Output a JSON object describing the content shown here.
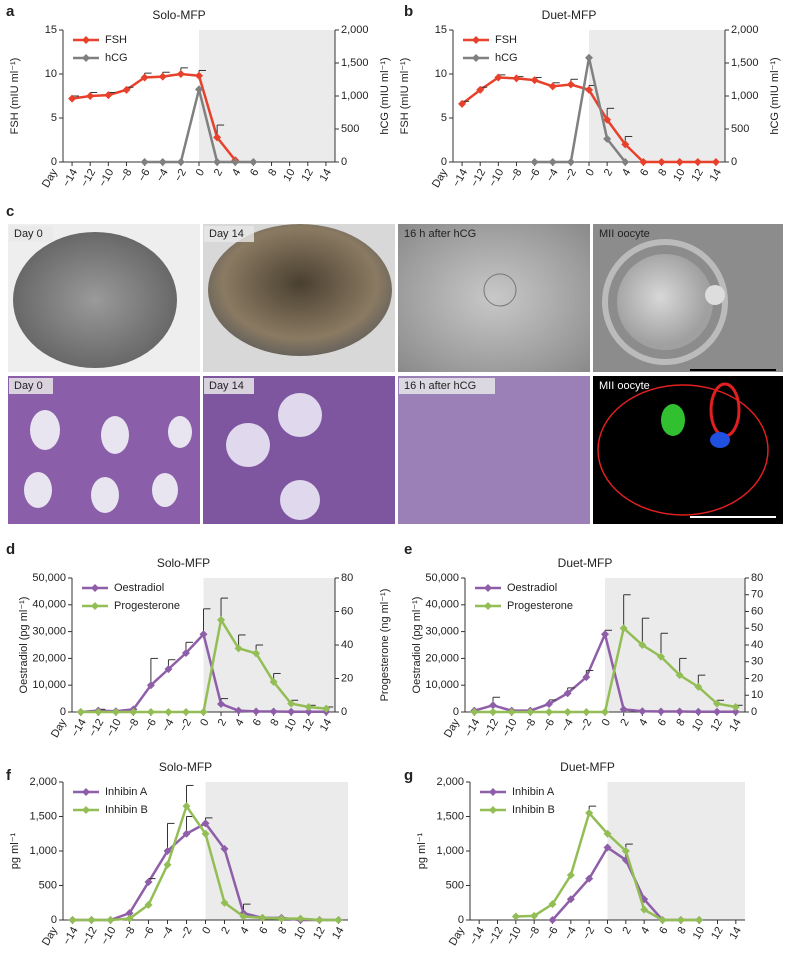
{
  "micrographs": {
    "panel": "c",
    "rows": [
      [
        "Day 0",
        "Day 14",
        "16 h after hCG",
        "MII oocyte"
      ],
      [
        "Day 0",
        "Day 14",
        "16 h after hCG",
        "MII oocyte"
      ]
    ]
  },
  "chart_data": [
    {
      "type": "line",
      "panel": "a",
      "title": "Solo-MFP",
      "xlabel": "Day",
      "ylabel": "FSH (mIU ml⁻¹)",
      "y2label": "hCG (mIU ml⁻¹)",
      "legend": "upper left",
      "x": [
        -14,
        -12,
        -10,
        -8,
        -6,
        -4,
        -2,
        0,
        2,
        4,
        6,
        8,
        10,
        12,
        14
      ],
      "xlim": [
        -15,
        15
      ],
      "shaded_x": [
        0,
        15
      ],
      "xticks": [
        {
          "value": -14,
          "label": "−14"
        },
        {
          "value": -12,
          "label": "−12"
        },
        {
          "value": -10,
          "label": "−10"
        },
        {
          "value": -8,
          "label": "−8"
        },
        {
          "value": -6,
          "label": "−6"
        },
        {
          "value": -4,
          "label": "−4"
        },
        {
          "value": -2,
          "label": "−2"
        },
        0,
        2,
        4,
        6,
        8,
        10,
        12,
        14
      ],
      "ylim": [
        0,
        15
      ],
      "yticks": [
        0,
        5,
        10,
        15
      ],
      "y2lim": [
        0,
        2000
      ],
      "y2ticks": [
        0,
        500,
        {
          "value": 1000,
          "label": "1,000"
        },
        {
          "value": 1500,
          "label": "1,500"
        },
        {
          "value": 2000,
          "label": "2,000"
        }
      ],
      "series": [
        {
          "name": "FSH",
          "color": "#e8412b",
          "values": [
            7.2,
            7.5,
            7.6,
            8.2,
            9.6,
            9.7,
            10,
            9.8,
            2.8,
            0.2,
            null,
            null,
            null,
            null,
            null
          ],
          "errors": [
            0.3,
            0.4,
            0.3,
            0.3,
            0.5,
            0.5,
            0.7,
            0.6,
            1.4,
            null,
            null,
            null,
            null,
            null,
            null
          ]
        },
        {
          "name": "hCG",
          "color": "#808080",
          "axis": "y2",
          "values": [
            null,
            null,
            null,
            null,
            0,
            0,
            0,
            1100,
            0,
            0,
            0,
            null,
            null,
            null,
            null
          ]
        }
      ]
    },
    {
      "type": "line",
      "panel": "b",
      "title": "Duet-MFP",
      "xlabel": "Day",
      "ylabel": "FSH (mIU ml⁻¹)",
      "y2label": "hCG (mIU ml⁻¹)",
      "legend": "upper left",
      "x": [
        -14,
        -12,
        -10,
        -8,
        -6,
        -4,
        -2,
        0,
        2,
        4,
        6,
        8,
        10,
        12,
        14
      ],
      "xlim": [
        -15,
        15
      ],
      "shaded_x": [
        0,
        15
      ],
      "xticks": [
        {
          "value": -14,
          "label": "−14"
        },
        {
          "value": -12,
          "label": "−12"
        },
        {
          "value": -10,
          "label": "−10"
        },
        {
          "value": -8,
          "label": "−8"
        },
        {
          "value": -6,
          "label": "−6"
        },
        {
          "value": -4,
          "label": "−4"
        },
        {
          "value": -2,
          "label": "−2"
        },
        0,
        2,
        4,
        6,
        8,
        10,
        12,
        14
      ],
      "ylim": [
        0,
        15
      ],
      "yticks": [
        0,
        5,
        10,
        15
      ],
      "y2lim": [
        0,
        2000
      ],
      "y2ticks": [
        0,
        500,
        {
          "value": 1000,
          "label": "1,000"
        },
        {
          "value": 1500,
          "label": "1,500"
        },
        {
          "value": 2000,
          "label": "2,000"
        }
      ],
      "series": [
        {
          "name": "FSH",
          "color": "#e8412b",
          "values": [
            6.6,
            8.2,
            9.6,
            9.5,
            9.3,
            8.6,
            8.8,
            8.2,
            4.8,
            2.0,
            0,
            0,
            0,
            0,
            0
          ],
          "errors": [
            0.3,
            0.3,
            0.3,
            0.2,
            0.3,
            0.4,
            0.6,
            0.5,
            1.3,
            0.9,
            null,
            null,
            null,
            null,
            null
          ]
        },
        {
          "name": "hCG",
          "color": "#808080",
          "axis": "y2",
          "values": [
            null,
            null,
            null,
            null,
            0,
            0,
            0,
            1580,
            350,
            0,
            null,
            null,
            null,
            null,
            null
          ]
        }
      ]
    },
    {
      "type": "line",
      "panel": "d",
      "title": "Solo-MFP",
      "xlabel": "Day",
      "ylabel": "Oestradiol (pg ml⁻¹)",
      "y2label": "Progesterone (ng ml⁻¹)",
      "legend": "upper left",
      "x": [
        -14,
        -12,
        -10,
        -8,
        -6,
        -4,
        -2,
        0,
        2,
        4,
        6,
        8,
        10,
        12,
        14
      ],
      "xlim": [
        -15,
        15
      ],
      "shaded_x": [
        0,
        15
      ],
      "xticks": [
        {
          "value": -14,
          "label": "−14"
        },
        {
          "value": -12,
          "label": "−12"
        },
        {
          "value": -10,
          "label": "−10"
        },
        {
          "value": -8,
          "label": "−8"
        },
        {
          "value": -6,
          "label": "−6"
        },
        {
          "value": -4,
          "label": "−4"
        },
        {
          "value": -2,
          "label": "−2"
        },
        0,
        2,
        4,
        6,
        8,
        10,
        12,
        14
      ],
      "ylim": [
        0,
        50000
      ],
      "yticks": [
        0,
        {
          "value": 10000,
          "label": "10,000"
        },
        {
          "value": 20000,
          "label": "20,000"
        },
        {
          "value": 30000,
          "label": "30,000"
        },
        {
          "value": 40000,
          "label": "40,000"
        },
        {
          "value": 50000,
          "label": "50,000"
        }
      ],
      "y2lim": [
        0,
        80
      ],
      "y2ticks": [
        0,
        20,
        40,
        60,
        80
      ],
      "series": [
        {
          "name": "Oestradiol",
          "color": "#8e5ea8",
          "values": [
            0,
            500,
            300,
            1000,
            10000,
            16000,
            22000,
            29000,
            3000,
            500,
            200,
            200,
            100,
            100,
            100
          ],
          "errors": [
            null,
            500,
            null,
            null,
            10000,
            3500,
            4000,
            9500,
            2000,
            null,
            null,
            null,
            null,
            null,
            null
          ]
        },
        {
          "name": "Progesterone",
          "color": "#93bd55",
          "axis": "y2",
          "values": [
            0,
            0,
            0,
            0,
            0,
            0,
            0,
            0,
            55,
            38,
            35,
            18,
            5,
            3,
            2
          ],
          "errors": [
            null,
            null,
            null,
            null,
            null,
            null,
            null,
            null,
            13,
            8,
            5,
            5,
            2,
            1,
            1
          ]
        }
      ]
    },
    {
      "type": "line",
      "panel": "e",
      "title": "Duet-MFP",
      "xlabel": "Day",
      "ylabel": "Oestradiol (pg ml⁻¹)",
      "y2label": "Progesterone (ng ml⁻¹)",
      "legend": "upper left",
      "x": [
        -14,
        -12,
        -10,
        -8,
        -6,
        -4,
        -2,
        0,
        2,
        4,
        6,
        8,
        10,
        12,
        14
      ],
      "xlim": [
        -15,
        15
      ],
      "shaded_x": [
        0,
        15
      ],
      "xticks": [
        {
          "value": -14,
          "label": "−14"
        },
        {
          "value": -12,
          "label": "−12"
        },
        {
          "value": -10,
          "label": "−10"
        },
        {
          "value": -8,
          "label": "−8"
        },
        {
          "value": -6,
          "label": "−6"
        },
        {
          "value": -4,
          "label": "−4"
        },
        {
          "value": -2,
          "label": "−2"
        },
        0,
        2,
        4,
        6,
        8,
        10,
        12,
        14
      ],
      "ylim": [
        0,
        50000
      ],
      "yticks": [
        0,
        {
          "value": 10000,
          "label": "10,000"
        },
        {
          "value": 20000,
          "label": "20,000"
        },
        {
          "value": 30000,
          "label": "30,000"
        },
        {
          "value": 40000,
          "label": "40,000"
        },
        {
          "value": 50000,
          "label": "50,000"
        }
      ],
      "y2lim": [
        0,
        80
      ],
      "y2ticks": [
        0,
        10,
        20,
        30,
        40,
        50,
        60,
        70,
        80
      ],
      "series": [
        {
          "name": "Oestradiol",
          "color": "#8e5ea8",
          "values": [
            500,
            2500,
            500,
            500,
            3000,
            7000,
            13000,
            29000,
            1000,
            300,
            200,
            200,
            100,
            100,
            100
          ],
          "errors": [
            null,
            3000,
            null,
            null,
            1500,
            2000,
            2500,
            1500,
            null,
            null,
            null,
            null,
            null,
            null,
            null
          ]
        },
        {
          "name": "Progesterone",
          "color": "#93bd55",
          "axis": "y2",
          "values": [
            0,
            0,
            0,
            0,
            0,
            0,
            0,
            0,
            50,
            40,
            33,
            22,
            15,
            5,
            3
          ],
          "errors": [
            null,
            null,
            null,
            null,
            null,
            null,
            null,
            null,
            20,
            16,
            14,
            10,
            7,
            2,
            1
          ]
        }
      ]
    },
    {
      "type": "line",
      "panel": "f",
      "title": "Solo-MFP",
      "xlabel": "Day",
      "ylabel": "pg ml⁻¹",
      "legend": "upper left",
      "x": [
        -14,
        -12,
        -10,
        -8,
        -6,
        -4,
        -2,
        0,
        2,
        4,
        6,
        8,
        10,
        12,
        14
      ],
      "xlim": [
        -15,
        15
      ],
      "shaded_x": [
        0,
        15
      ],
      "xticks": [
        {
          "value": -14,
          "label": "−14"
        },
        {
          "value": -12,
          "label": "−12"
        },
        {
          "value": -10,
          "label": "−10"
        },
        {
          "value": -8,
          "label": "−8"
        },
        {
          "value": -6,
          "label": "−6"
        },
        {
          "value": -4,
          "label": "−4"
        },
        {
          "value": -2,
          "label": "−2"
        },
        0,
        2,
        4,
        6,
        8,
        10,
        12,
        14
      ],
      "ylim": [
        0,
        2000
      ],
      "yticks": [
        0,
        500,
        {
          "value": 1000,
          "label": "1,000"
        },
        {
          "value": 1500,
          "label": "1,500"
        },
        {
          "value": 2000,
          "label": "2,000"
        }
      ],
      "series": [
        {
          "name": "Inhibin A",
          "color": "#8e5ea8",
          "values": [
            0,
            0,
            0,
            100,
            550,
            1000,
            1250,
            1400,
            1030,
            100,
            30,
            30,
            0,
            0,
            0
          ],
          "errors": [
            null,
            null,
            null,
            null,
            50,
            400,
            250,
            80,
            null,
            130,
            null,
            null,
            null,
            null,
            null
          ]
        },
        {
          "name": "Inhibin B",
          "color": "#93bd55",
          "values": [
            0,
            0,
            0,
            20,
            220,
            800,
            1650,
            1250,
            250,
            50,
            30,
            20,
            20,
            0,
            0
          ],
          "errors": [
            null,
            null,
            null,
            null,
            null,
            null,
            300,
            null,
            null,
            null,
            null,
            null,
            null,
            null,
            null
          ]
        }
      ]
    },
    {
      "type": "line",
      "panel": "g",
      "title": "Duet-MFP",
      "xlabel": "Day",
      "ylabel": "pg ml⁻¹",
      "legend": "upper left",
      "x": [
        -14,
        -12,
        -10,
        -8,
        -6,
        -4,
        -2,
        0,
        2,
        4,
        6,
        8,
        10,
        12,
        14
      ],
      "xlim": [
        -15,
        15
      ],
      "shaded_x": [
        0,
        15
      ],
      "xticks": [
        {
          "value": -14,
          "label": "−14"
        },
        {
          "value": -12,
          "label": "−12"
        },
        {
          "value": -10,
          "label": "−10"
        },
        {
          "value": -8,
          "label": "−8"
        },
        {
          "value": -6,
          "label": "−6"
        },
        {
          "value": -4,
          "label": "−4"
        },
        {
          "value": -2,
          "label": "−2"
        },
        0,
        2,
        4,
        6,
        8,
        10,
        12,
        14
      ],
      "ylim": [
        0,
        2000
      ],
      "yticks": [
        0,
        500,
        {
          "value": 1000,
          "label": "1,000"
        },
        {
          "value": 1500,
          "label": "1,500"
        },
        {
          "value": 2000,
          "label": "2,000"
        }
      ],
      "series": [
        {
          "name": "Inhibin A",
          "color": "#8e5ea8",
          "values": [
            null,
            null,
            null,
            null,
            0,
            300,
            600,
            1050,
            870,
            300,
            0,
            0,
            0,
            null,
            null
          ],
          "errors": [
            null,
            null,
            null,
            null,
            null,
            null,
            null,
            null,
            230,
            null,
            null,
            null,
            null,
            null,
            null
          ]
        },
        {
          "name": "Inhibin B",
          "color": "#93bd55",
          "values": [
            null,
            null,
            50,
            60,
            230,
            650,
            1550,
            1250,
            1000,
            150,
            0,
            0,
            0,
            null,
            null
          ],
          "errors": [
            null,
            null,
            null,
            null,
            null,
            null,
            100,
            null,
            null,
            null,
            null,
            null,
            null,
            null,
            null
          ]
        }
      ]
    }
  ]
}
